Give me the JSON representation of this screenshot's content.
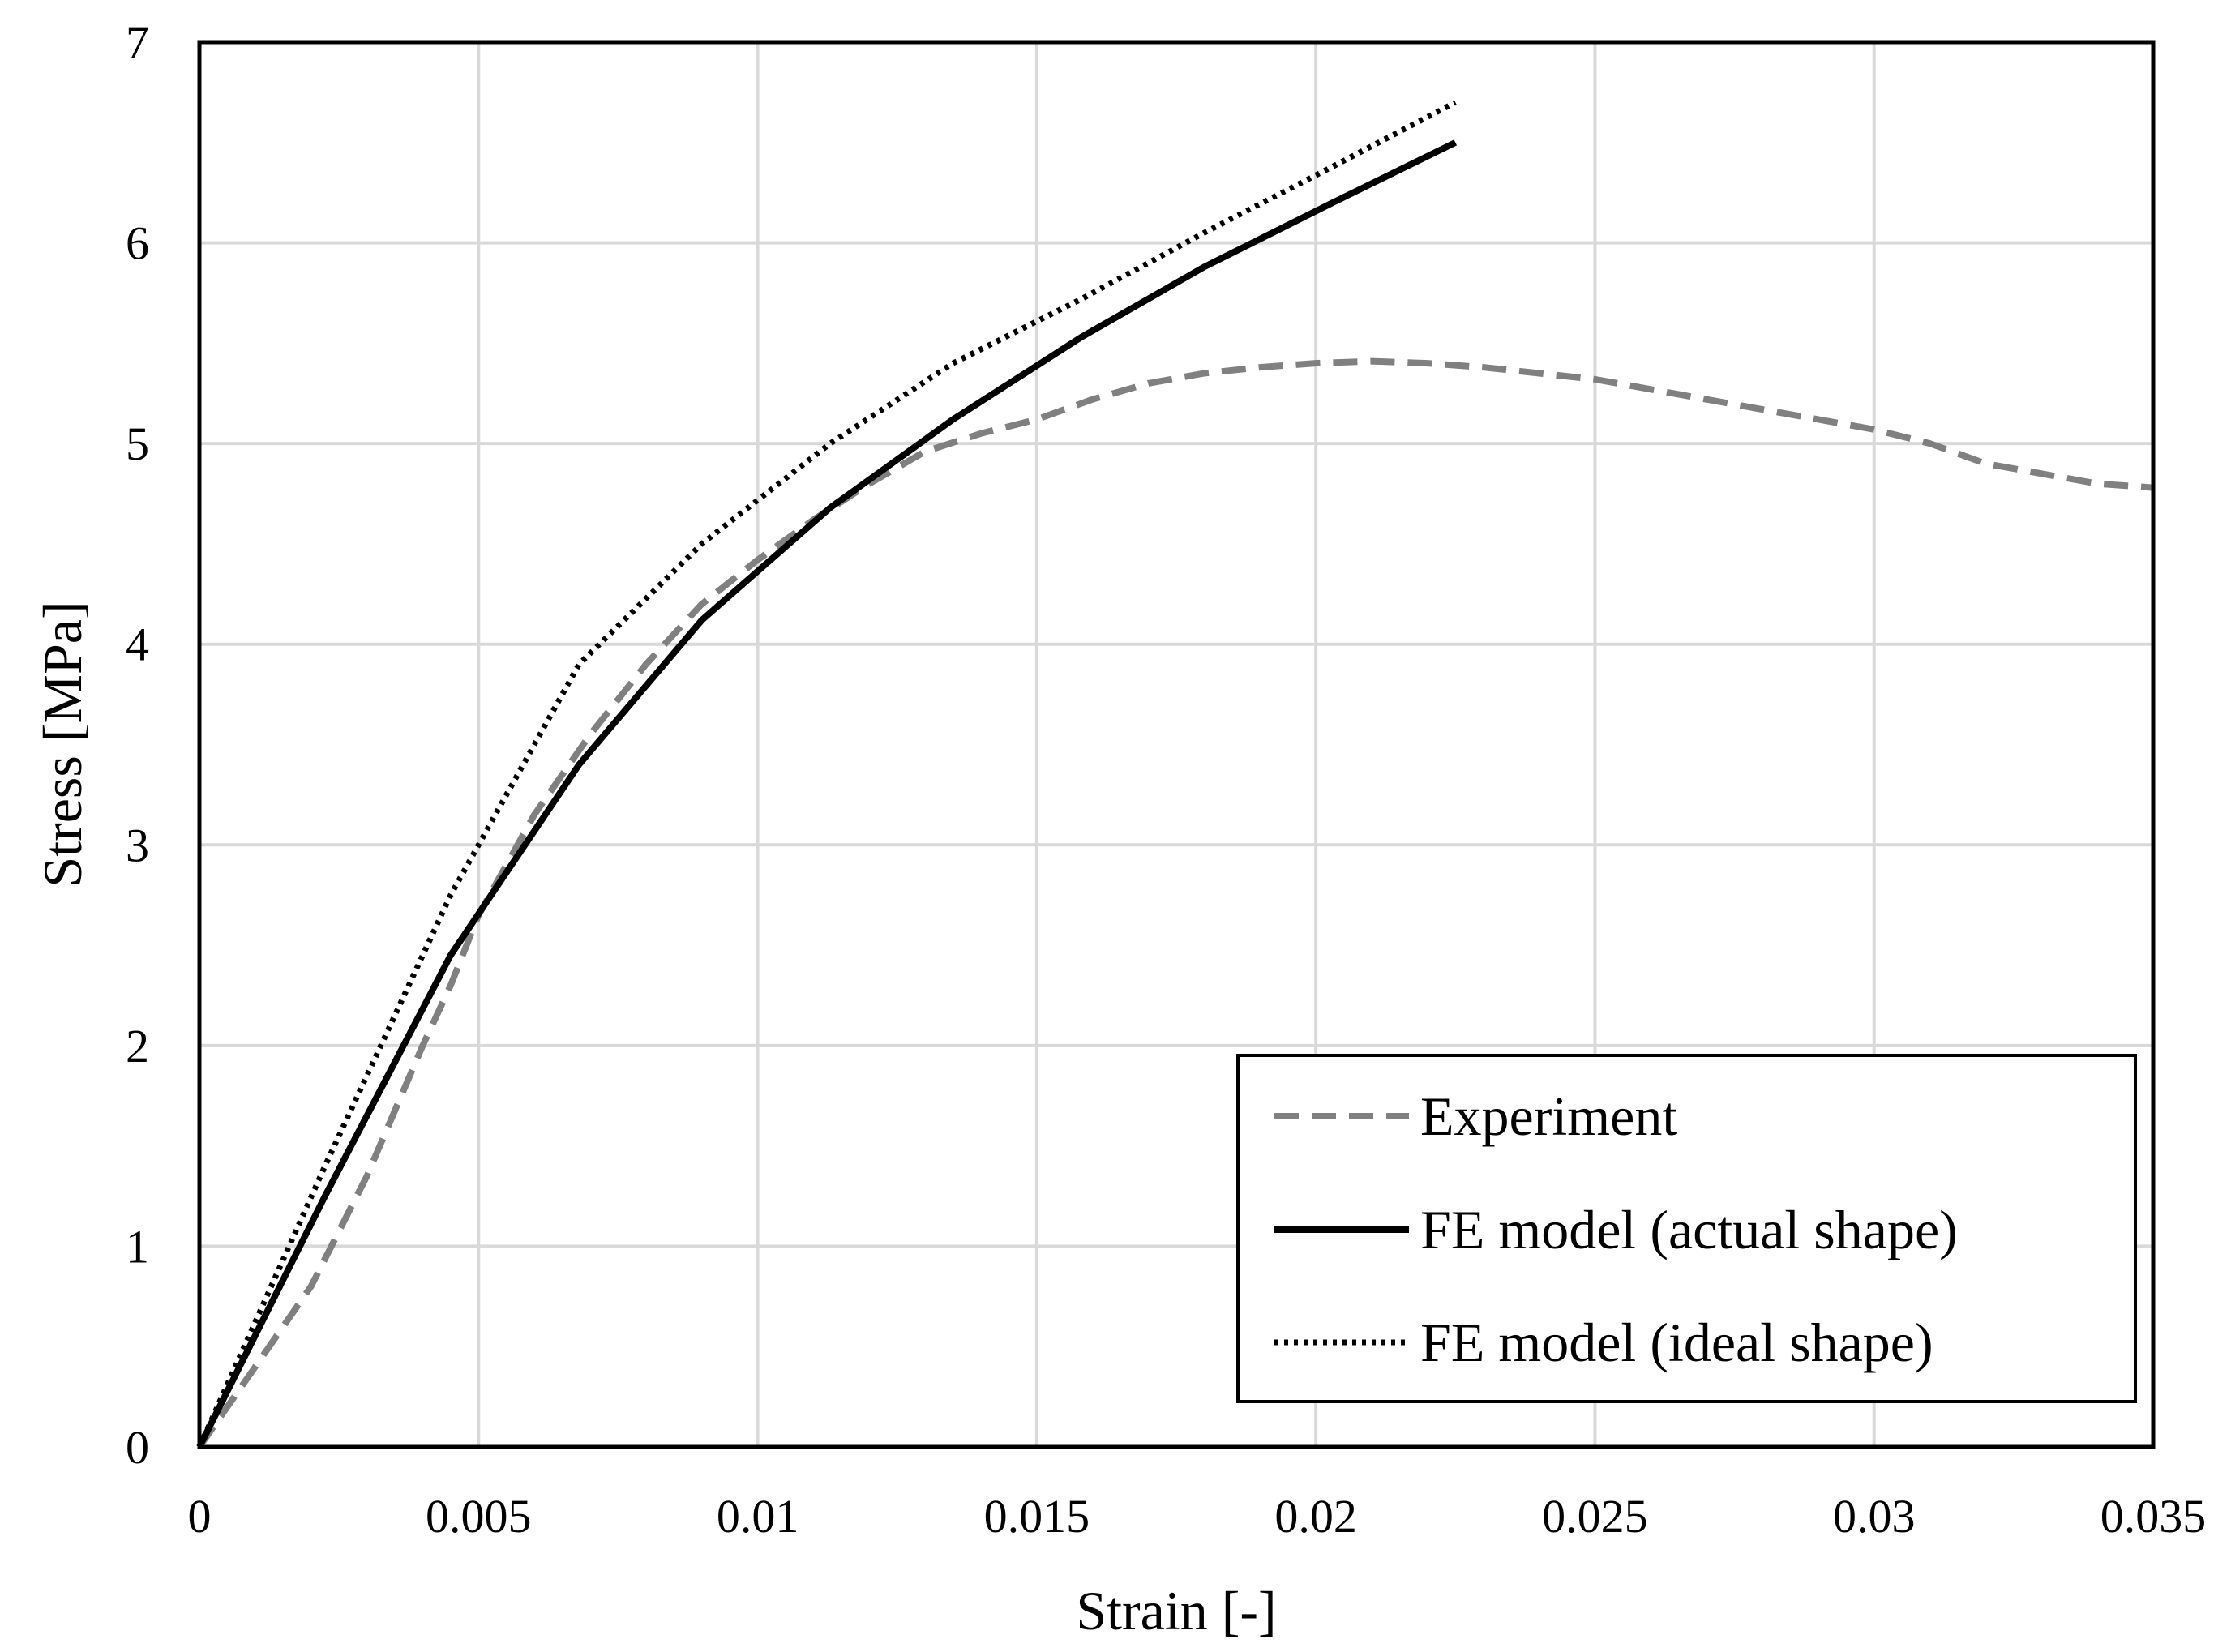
{
  "chart_data": {
    "type": "line",
    "title": "",
    "xlabel": "Strain [-]",
    "ylabel": "Stress [MPa]",
    "xlim": [
      0,
      0.035
    ],
    "ylim": [
      0,
      7
    ],
    "xticks": [
      0,
      0.005,
      0.01,
      0.015,
      0.02,
      0.025,
      0.03,
      0.035
    ],
    "xtick_labels": [
      "0",
      "0.005",
      "0.01",
      "0.015",
      "0.02",
      "0.025",
      "0.03",
      "0.035"
    ],
    "yticks": [
      0,
      1,
      2,
      3,
      4,
      5,
      6,
      7
    ],
    "ytick_labels": [
      "0",
      "1",
      "2",
      "3",
      "4",
      "5",
      "6",
      "7"
    ],
    "grid": true,
    "legend_position": "bottom-right",
    "series": [
      {
        "name": "Experiment",
        "style": "dashed",
        "color": "#808080",
        "x": [
          0,
          0.001,
          0.002,
          0.003,
          0.004,
          0.0045,
          0.005,
          0.006,
          0.007,
          0.008,
          0.009,
          0.01,
          0.011,
          0.012,
          0.013,
          0.014,
          0.015,
          0.016,
          0.017,
          0.018,
          0.019,
          0.02,
          0.021,
          0.022,
          0.023,
          0.024,
          0.025,
          0.026,
          0.027,
          0.028,
          0.029,
          0.03,
          0.031,
          0.032,
          0.033,
          0.034,
          0.035
        ],
        "y": [
          0,
          0.4,
          0.8,
          1.35,
          2.0,
          2.3,
          2.65,
          3.15,
          3.55,
          3.9,
          4.2,
          4.42,
          4.62,
          4.8,
          4.96,
          5.05,
          5.12,
          5.22,
          5.3,
          5.35,
          5.38,
          5.4,
          5.41,
          5.4,
          5.38,
          5.35,
          5.32,
          5.27,
          5.22,
          5.17,
          5.12,
          5.07,
          5.0,
          4.9,
          4.85,
          4.8,
          4.78
        ]
      },
      {
        "name": "FE model (actual shape)",
        "style": "solid",
        "color": "#000000",
        "x": [
          0,
          0.00225,
          0.0045,
          0.0068,
          0.009,
          0.0113,
          0.0135,
          0.0158,
          0.018,
          0.0203,
          0.0225
        ],
        "y": [
          0,
          1.25,
          2.45,
          3.4,
          4.12,
          4.68,
          5.12,
          5.53,
          5.88,
          6.2,
          6.5
        ]
      },
      {
        "name": "FE model (ideal shape)",
        "style": "dotted",
        "color": "#000000",
        "x": [
          0,
          0.00225,
          0.0045,
          0.0068,
          0.009,
          0.0113,
          0.0135,
          0.0158,
          0.018,
          0.0203,
          0.0225
        ],
        "y": [
          0,
          1.4,
          2.75,
          3.9,
          4.5,
          5.0,
          5.4,
          5.72,
          6.05,
          6.38,
          6.7
        ]
      }
    ]
  }
}
